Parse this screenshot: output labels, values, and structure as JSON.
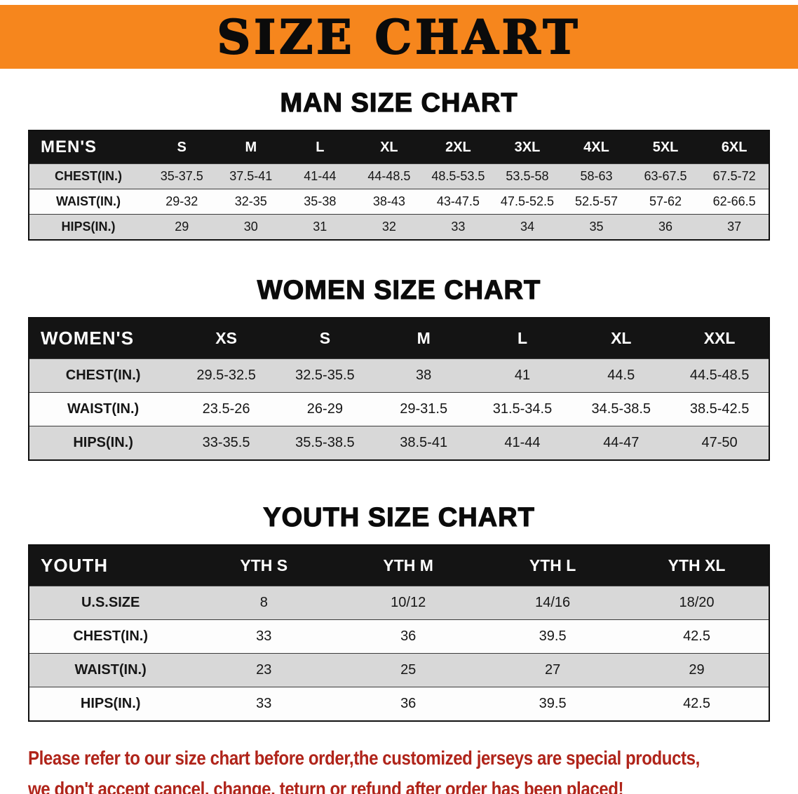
{
  "banner": {
    "title": "SIZE CHART"
  },
  "colors": {
    "banner-orange": "#F6861D",
    "header-black": "#141414",
    "row-gray": "#D8D8D8",
    "row-white": "#FDFDFD",
    "disclaimer-red": "#B0241A"
  },
  "sections": [
    {
      "heading": "MAN SIZE CHART",
      "table": {
        "header": [
          "MEN'S",
          "S",
          "M",
          "L",
          "XL",
          "2XL",
          "3XL",
          "4XL",
          "5XL",
          "6XL"
        ],
        "rows": [
          [
            "CHEST(IN.)",
            "35-37.5",
            "37.5-41",
            "41-44",
            "44-48.5",
            "48.5-53.5",
            "53.5-58",
            "58-63",
            "63-67.5",
            "67.5-72"
          ],
          [
            "WAIST(IN.)",
            "29-32",
            "32-35",
            "35-38",
            "38-43",
            "43-47.5",
            "47.5-52.5",
            "52.5-57",
            "57-62",
            "62-66.5"
          ],
          [
            "HIPS(IN.)",
            "29",
            "30",
            "31",
            "32",
            "33",
            "34",
            "35",
            "36",
            "37"
          ]
        ]
      }
    },
    {
      "heading": "WOMEN SIZE CHART",
      "table": {
        "header": [
          "WOMEN'S",
          "XS",
          "S",
          "M",
          "L",
          "XL",
          "XXL"
        ],
        "rows": [
          [
            "CHEST(IN.)",
            "29.5-32.5",
            "32.5-35.5",
            "38",
            "41",
            "44.5",
            "44.5-48.5"
          ],
          [
            "WAIST(IN.)",
            "23.5-26",
            "26-29",
            "29-31.5",
            "31.5-34.5",
            "34.5-38.5",
            "38.5-42.5"
          ],
          [
            "HIPS(IN.)",
            "33-35.5",
            "35.5-38.5",
            "38.5-41",
            "41-44",
            "44-47",
            "47-50"
          ]
        ]
      }
    },
    {
      "heading": "YOUTH SIZE CHART",
      "table": {
        "header": [
          "YOUTH",
          "YTH S",
          "YTH M",
          "YTH L",
          "YTH XL"
        ],
        "rows": [
          [
            "U.S.SIZE",
            "8",
            "10/12",
            "14/16",
            "18/20"
          ],
          [
            "CHEST(IN.)",
            "33",
            "36",
            "39.5",
            "42.5"
          ],
          [
            "WAIST(IN.)",
            "23",
            "25",
            "27",
            "29"
          ],
          [
            "HIPS(IN.)",
            "33",
            "36",
            "39.5",
            "42.5"
          ]
        ]
      }
    }
  ],
  "disclaimer": {
    "line1": "Please refer to our size chart before order,the customized jerseys are special products,",
    "line2": "we don't accept cancel, change, teturn or refund after order has been placed!"
  }
}
